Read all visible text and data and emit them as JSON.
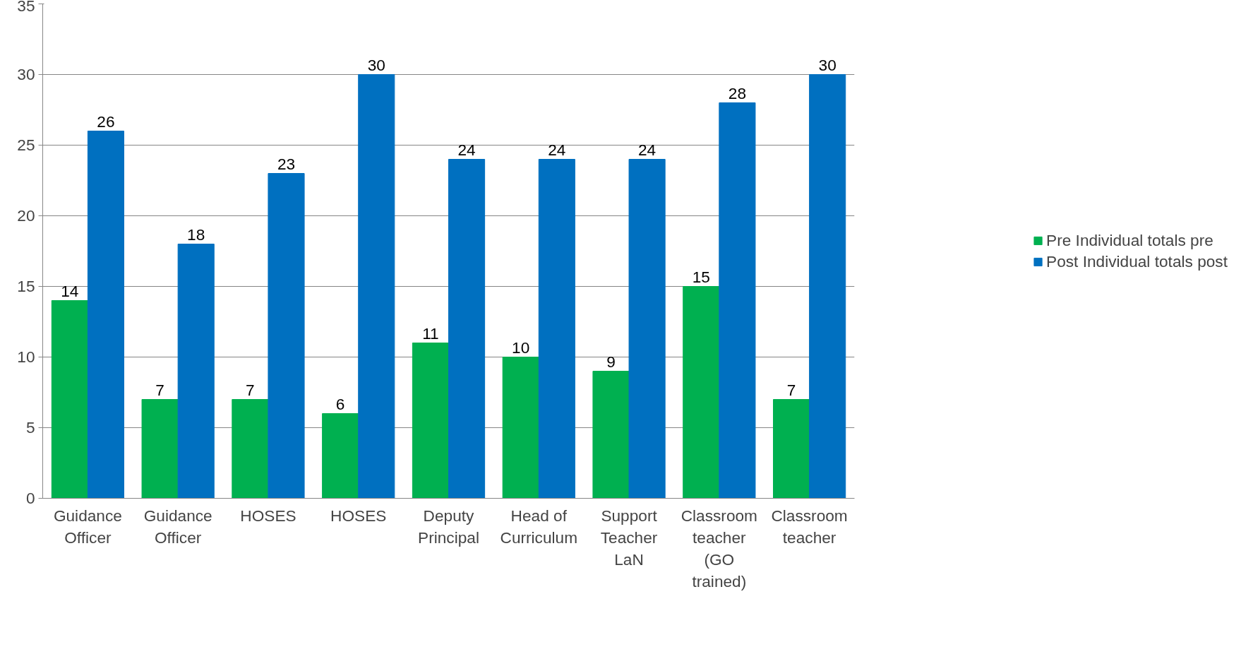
{
  "chart_data": {
    "type": "bar",
    "categories": [
      "Guidance Officer",
      "Guidance Officer",
      "HOSES",
      "HOSES",
      "Deputy Principal",
      "Head of Curriculum",
      "Support Teacher LaN",
      "Classroom teacher (GO trained)",
      "Classroom teacher"
    ],
    "series": [
      {
        "name": "Pre Individual totals pre",
        "color": "#00b050",
        "values": [
          14,
          7,
          7,
          6,
          11,
          10,
          9,
          15,
          7
        ]
      },
      {
        "name": "Post Individual totals post",
        "color": "#0070c0",
        "values": [
          26,
          18,
          23,
          30,
          24,
          24,
          24,
          28,
          30
        ]
      }
    ],
    "ylim": [
      0,
      35
    ],
    "yticks": [
      0,
      5,
      10,
      15,
      20,
      25,
      30,
      35
    ],
    "grid": "y",
    "legend": "right",
    "data_labels": true
  }
}
